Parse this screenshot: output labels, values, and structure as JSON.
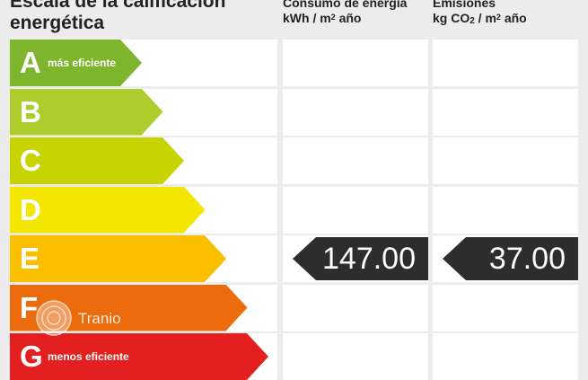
{
  "header": {
    "title": "Escala de la calificación energética",
    "energy": {
      "line1": "Consumo de energía",
      "unit_pre": "kWh / m",
      "unit_sup": "2",
      "unit_post": " año"
    },
    "emissions": {
      "line1": "Emisiones",
      "unit_pre": "kg CO",
      "unit_sub": "2",
      "unit_mid": " / m",
      "unit_sup": "2",
      "unit_post": " año"
    }
  },
  "ratings": [
    {
      "letter": "A",
      "label": "más eficiente",
      "color": "#7db62c"
    },
    {
      "letter": "B",
      "label": "",
      "color": "#aecd2c"
    },
    {
      "letter": "C",
      "label": "",
      "color": "#c8d400"
    },
    {
      "letter": "D",
      "label": "",
      "color": "#f3e600"
    },
    {
      "letter": "E",
      "label": "",
      "color": "#fbbf00"
    },
    {
      "letter": "F",
      "label": "",
      "color": "#ec6b0c"
    },
    {
      "letter": "G",
      "label": "menos eficiente",
      "color": "#e3201f"
    }
  ],
  "current": {
    "rating": "E",
    "energy_value": "147.00",
    "emissions_value": "37.00",
    "indicator_color": "#2d2d2d"
  },
  "watermark": {
    "text": "Tranio"
  }
}
